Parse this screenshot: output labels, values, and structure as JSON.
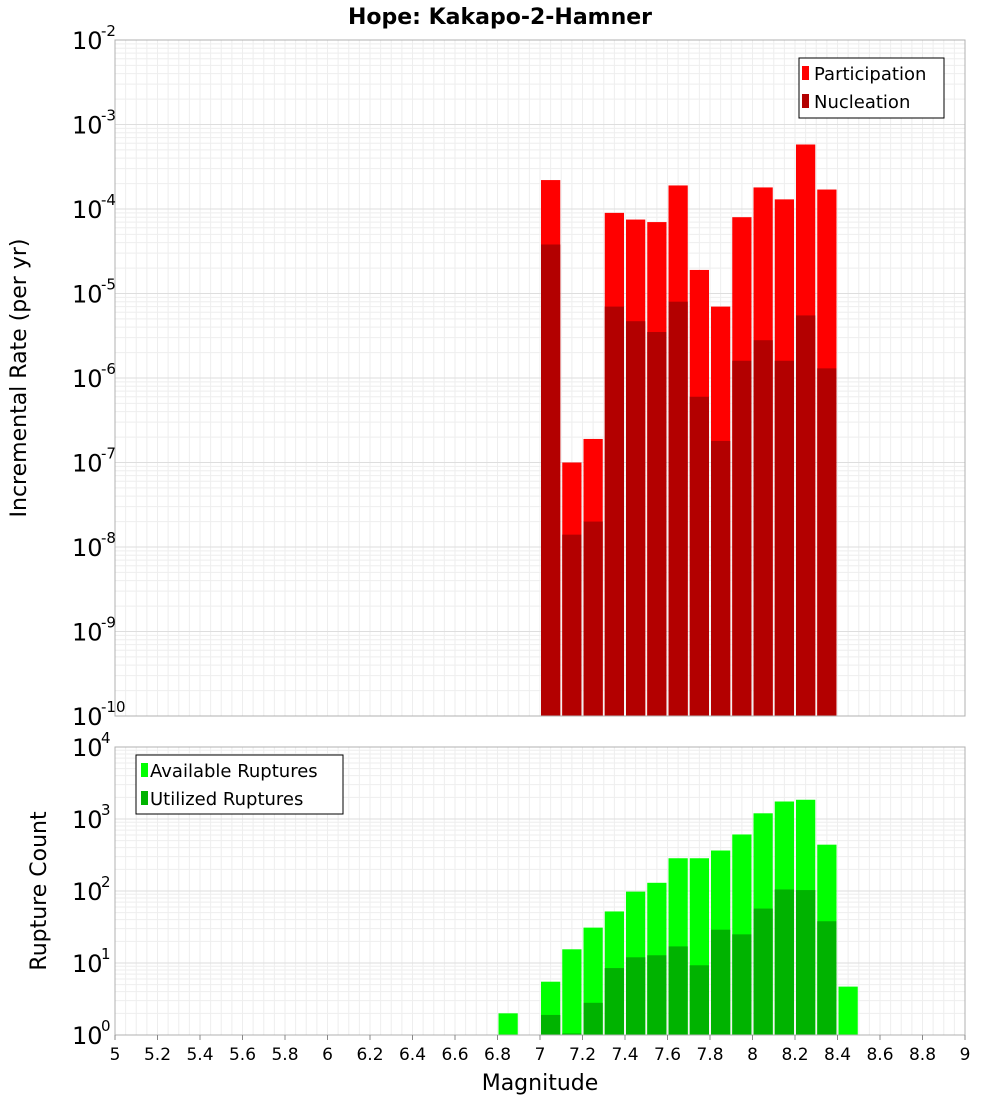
{
  "chart_data": [
    {
      "type": "bar",
      "title": "Hope: Kakapo-2-Hamner",
      "ylabel": "Incremental Rate (per yr)",
      "xlabel": "",
      "yscale": "log",
      "ylim_exponents": [
        -10,
        -2
      ],
      "xlim": [
        5,
        9
      ],
      "bin_width": 0.1,
      "grid": true,
      "legend_position": "top-right",
      "colors": {
        "participation": "#ff0000",
        "nucleation": "#b30000"
      },
      "legend": [
        "Participation",
        "Nucleation"
      ],
      "x": [
        7.05,
        7.15,
        7.25,
        7.35,
        7.45,
        7.55,
        7.65,
        7.75,
        7.85,
        7.95,
        8.05,
        8.15,
        8.25,
        8.35
      ],
      "series": [
        {
          "name": "Participation",
          "values": [
            0.00022,
            1e-07,
            1.9e-07,
            9e-05,
            7.5e-05,
            7e-05,
            0.00019,
            1.9e-05,
            7e-06,
            8e-05,
            0.00018,
            0.00013,
            0.00058,
            0.00017
          ]
        },
        {
          "name": "Nucleation",
          "values": [
            3.8e-05,
            1.4e-08,
            2e-08,
            7e-06,
            4.7e-06,
            3.5e-06,
            8e-06,
            6e-07,
            1.8e-07,
            1.6e-06,
            2.8e-06,
            1.6e-06,
            5.5e-06,
            1.3e-06
          ]
        }
      ]
    },
    {
      "type": "bar",
      "title": "",
      "ylabel": "Rupture Count",
      "xlabel": "Magnitude",
      "yscale": "log",
      "ylim_exponents": [
        0,
        4
      ],
      "xlim": [
        5,
        9
      ],
      "bin_width": 0.1,
      "grid": true,
      "legend_position": "top-left",
      "colors": {
        "available": "#00ff00",
        "utilized": "#00b300"
      },
      "legend": [
        "Available Ruptures",
        "Utilized Ruptures"
      ],
      "x": [
        6.25,
        6.75,
        6.85,
        6.95,
        7.05,
        7.15,
        7.25,
        7.35,
        7.45,
        7.55,
        7.65,
        7.75,
        7.85,
        7.95,
        8.05,
        8.15,
        8.25,
        8.35,
        8.45
      ],
      "series": [
        {
          "name": "Available Ruptures",
          "values": [
            1,
            1,
            2,
            1,
            5.5,
            15.5,
            31,
            52,
            98,
            130,
            285,
            285,
            365,
            610,
            1200,
            1750,
            1850,
            440,
            4.7
          ]
        },
        {
          "name": "Utilized Ruptures",
          "values": [
            0,
            0,
            0,
            0,
            1.9,
            1.05,
            2.8,
            8.5,
            12,
            12.8,
            17,
            9.3,
            29,
            25,
            57,
            105,
            103,
            38,
            0
          ]
        }
      ],
      "xticks": [
        "5",
        "5.2",
        "5.4",
        "5.6",
        "5.8",
        "6",
        "6.2",
        "6.4",
        "6.6",
        "6.8",
        "7",
        "7.2",
        "7.4",
        "7.6",
        "7.8",
        "8",
        "8.2",
        "8.4",
        "8.6",
        "8.8",
        "9"
      ]
    }
  ]
}
